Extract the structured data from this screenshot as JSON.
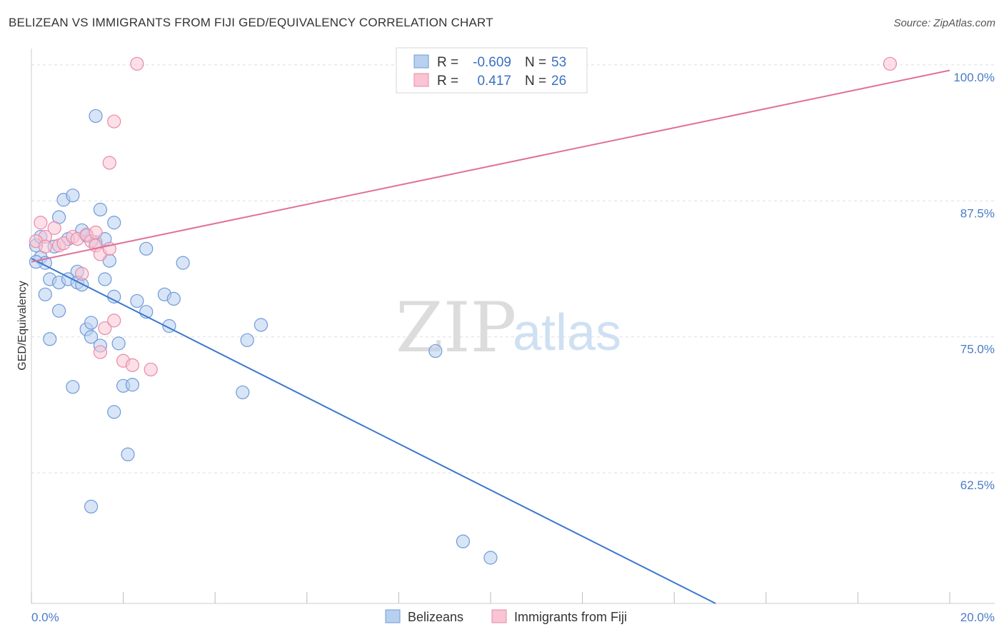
{
  "title": "BELIZEAN VS IMMIGRANTS FROM FIJI GED/EQUIVALENCY CORRELATION CHART",
  "source": "Source: ZipAtlas.com",
  "watermark": {
    "zip": "ZIP",
    "atlas": "atlas"
  },
  "colors": {
    "blue_fill": "#b8d0f0",
    "blue_stroke": "#6f9ad8",
    "blue_line": "#3a78d0",
    "pink_fill": "#f9c4d4",
    "pink_stroke": "#e88aa8",
    "pink_line": "#e07098",
    "grid": "#dddddd",
    "axis_label": "#4a7bc8"
  },
  "legend": {
    "r_label": "R =",
    "n_label": "N =",
    "rows": [
      {
        "series": "Belizeans",
        "r": "-0.609",
        "n": "53"
      },
      {
        "series": "Immigrants from Fiji",
        "r": "0.417",
        "n": "26"
      }
    ]
  },
  "chart_data": {
    "type": "scatter",
    "title": "BELIZEAN VS IMMIGRANTS FROM FIJI GED/EQUIVALENCY CORRELATION CHART",
    "xlabel": "",
    "ylabel": "GED/Equivalency",
    "xlim": [
      0,
      20
    ],
    "ylim": [
      50.5,
      101.5
    ],
    "x_tick_labels": {
      "min": "0.0%",
      "max": "20.0%"
    },
    "y_ticks": [
      {
        "value": 62.5,
        "label": "62.5%"
      },
      {
        "value": 75.0,
        "label": "75.0%"
      },
      {
        "value": 87.5,
        "label": "87.5%"
      },
      {
        "value": 100.0,
        "label": "100.0%"
      }
    ],
    "series": [
      {
        "name": "Belizeans",
        "color": "blue",
        "trend": {
          "x1": 0.0,
          "y1": 82.2,
          "x2": 14.9,
          "y2": 50.5
        },
        "points": [
          [
            0.1,
            83.4
          ],
          [
            0.2,
            82.3
          ],
          [
            0.3,
            81.8
          ],
          [
            0.2,
            84.2
          ],
          [
            0.1,
            81.9
          ],
          [
            0.4,
            80.3
          ],
          [
            0.3,
            78.9
          ],
          [
            0.6,
            80.0
          ],
          [
            0.5,
            83.3
          ],
          [
            0.6,
            86.0
          ],
          [
            0.7,
            87.6
          ],
          [
            0.9,
            88.0
          ],
          [
            0.8,
            84.0
          ],
          [
            1.0,
            81.0
          ],
          [
            0.8,
            80.3
          ],
          [
            0.6,
            77.4
          ],
          [
            0.4,
            74.8
          ],
          [
            1.0,
            80.0
          ],
          [
            1.1,
            84.8
          ],
          [
            1.2,
            84.3
          ],
          [
            1.1,
            79.8
          ],
          [
            1.2,
            75.7
          ],
          [
            1.3,
            75.0
          ],
          [
            1.3,
            76.3
          ],
          [
            1.5,
            74.2
          ],
          [
            1.4,
            83.7
          ],
          [
            1.5,
            86.7
          ],
          [
            1.4,
            95.3
          ],
          [
            1.6,
            84.0
          ],
          [
            1.6,
            80.3
          ],
          [
            1.7,
            82.0
          ],
          [
            1.8,
            78.7
          ],
          [
            1.9,
            74.4
          ],
          [
            1.8,
            68.1
          ],
          [
            1.8,
            85.5
          ],
          [
            2.0,
            70.5
          ],
          [
            2.2,
            70.6
          ],
          [
            2.1,
            64.2
          ],
          [
            2.3,
            78.3
          ],
          [
            2.5,
            77.3
          ],
          [
            2.5,
            83.1
          ],
          [
            1.3,
            59.4
          ],
          [
            2.9,
            78.9
          ],
          [
            3.0,
            76.0
          ],
          [
            3.1,
            78.5
          ],
          [
            3.3,
            81.8
          ],
          [
            4.7,
            74.7
          ],
          [
            4.6,
            69.9
          ],
          [
            5.0,
            76.1
          ],
          [
            0.9,
            70.4
          ],
          [
            8.8,
            73.7
          ],
          [
            9.4,
            56.2
          ],
          [
            10.0,
            54.7
          ]
        ]
      },
      {
        "name": "Immigrants from Fiji",
        "color": "pink",
        "trend": {
          "x1": 0.0,
          "y1": 81.9,
          "x2": 20.0,
          "y2": 99.5
        },
        "points": [
          [
            0.2,
            85.5
          ],
          [
            0.3,
            84.2
          ],
          [
            0.1,
            83.8
          ],
          [
            0.5,
            85.0
          ],
          [
            0.6,
            83.4
          ],
          [
            0.7,
            83.6
          ],
          [
            0.9,
            84.2
          ],
          [
            1.0,
            84.0
          ],
          [
            1.1,
            80.8
          ],
          [
            1.2,
            84.4
          ],
          [
            1.3,
            83.8
          ],
          [
            1.4,
            83.4
          ],
          [
            1.5,
            82.6
          ],
          [
            1.4,
            84.6
          ],
          [
            1.7,
            83.1
          ],
          [
            1.6,
            75.8
          ],
          [
            1.8,
            76.5
          ],
          [
            1.5,
            73.6
          ],
          [
            2.0,
            72.8
          ],
          [
            2.2,
            72.4
          ],
          [
            2.6,
            72.0
          ],
          [
            1.7,
            91.0
          ],
          [
            1.8,
            94.8
          ],
          [
            2.3,
            100.1
          ],
          [
            18.7,
            100.1
          ],
          [
            0.3,
            83.3
          ]
        ]
      }
    ]
  },
  "bottom_legend": [
    {
      "label": "Belizeans",
      "color": "blue"
    },
    {
      "label": "Immigrants from Fiji",
      "color": "pink"
    }
  ]
}
